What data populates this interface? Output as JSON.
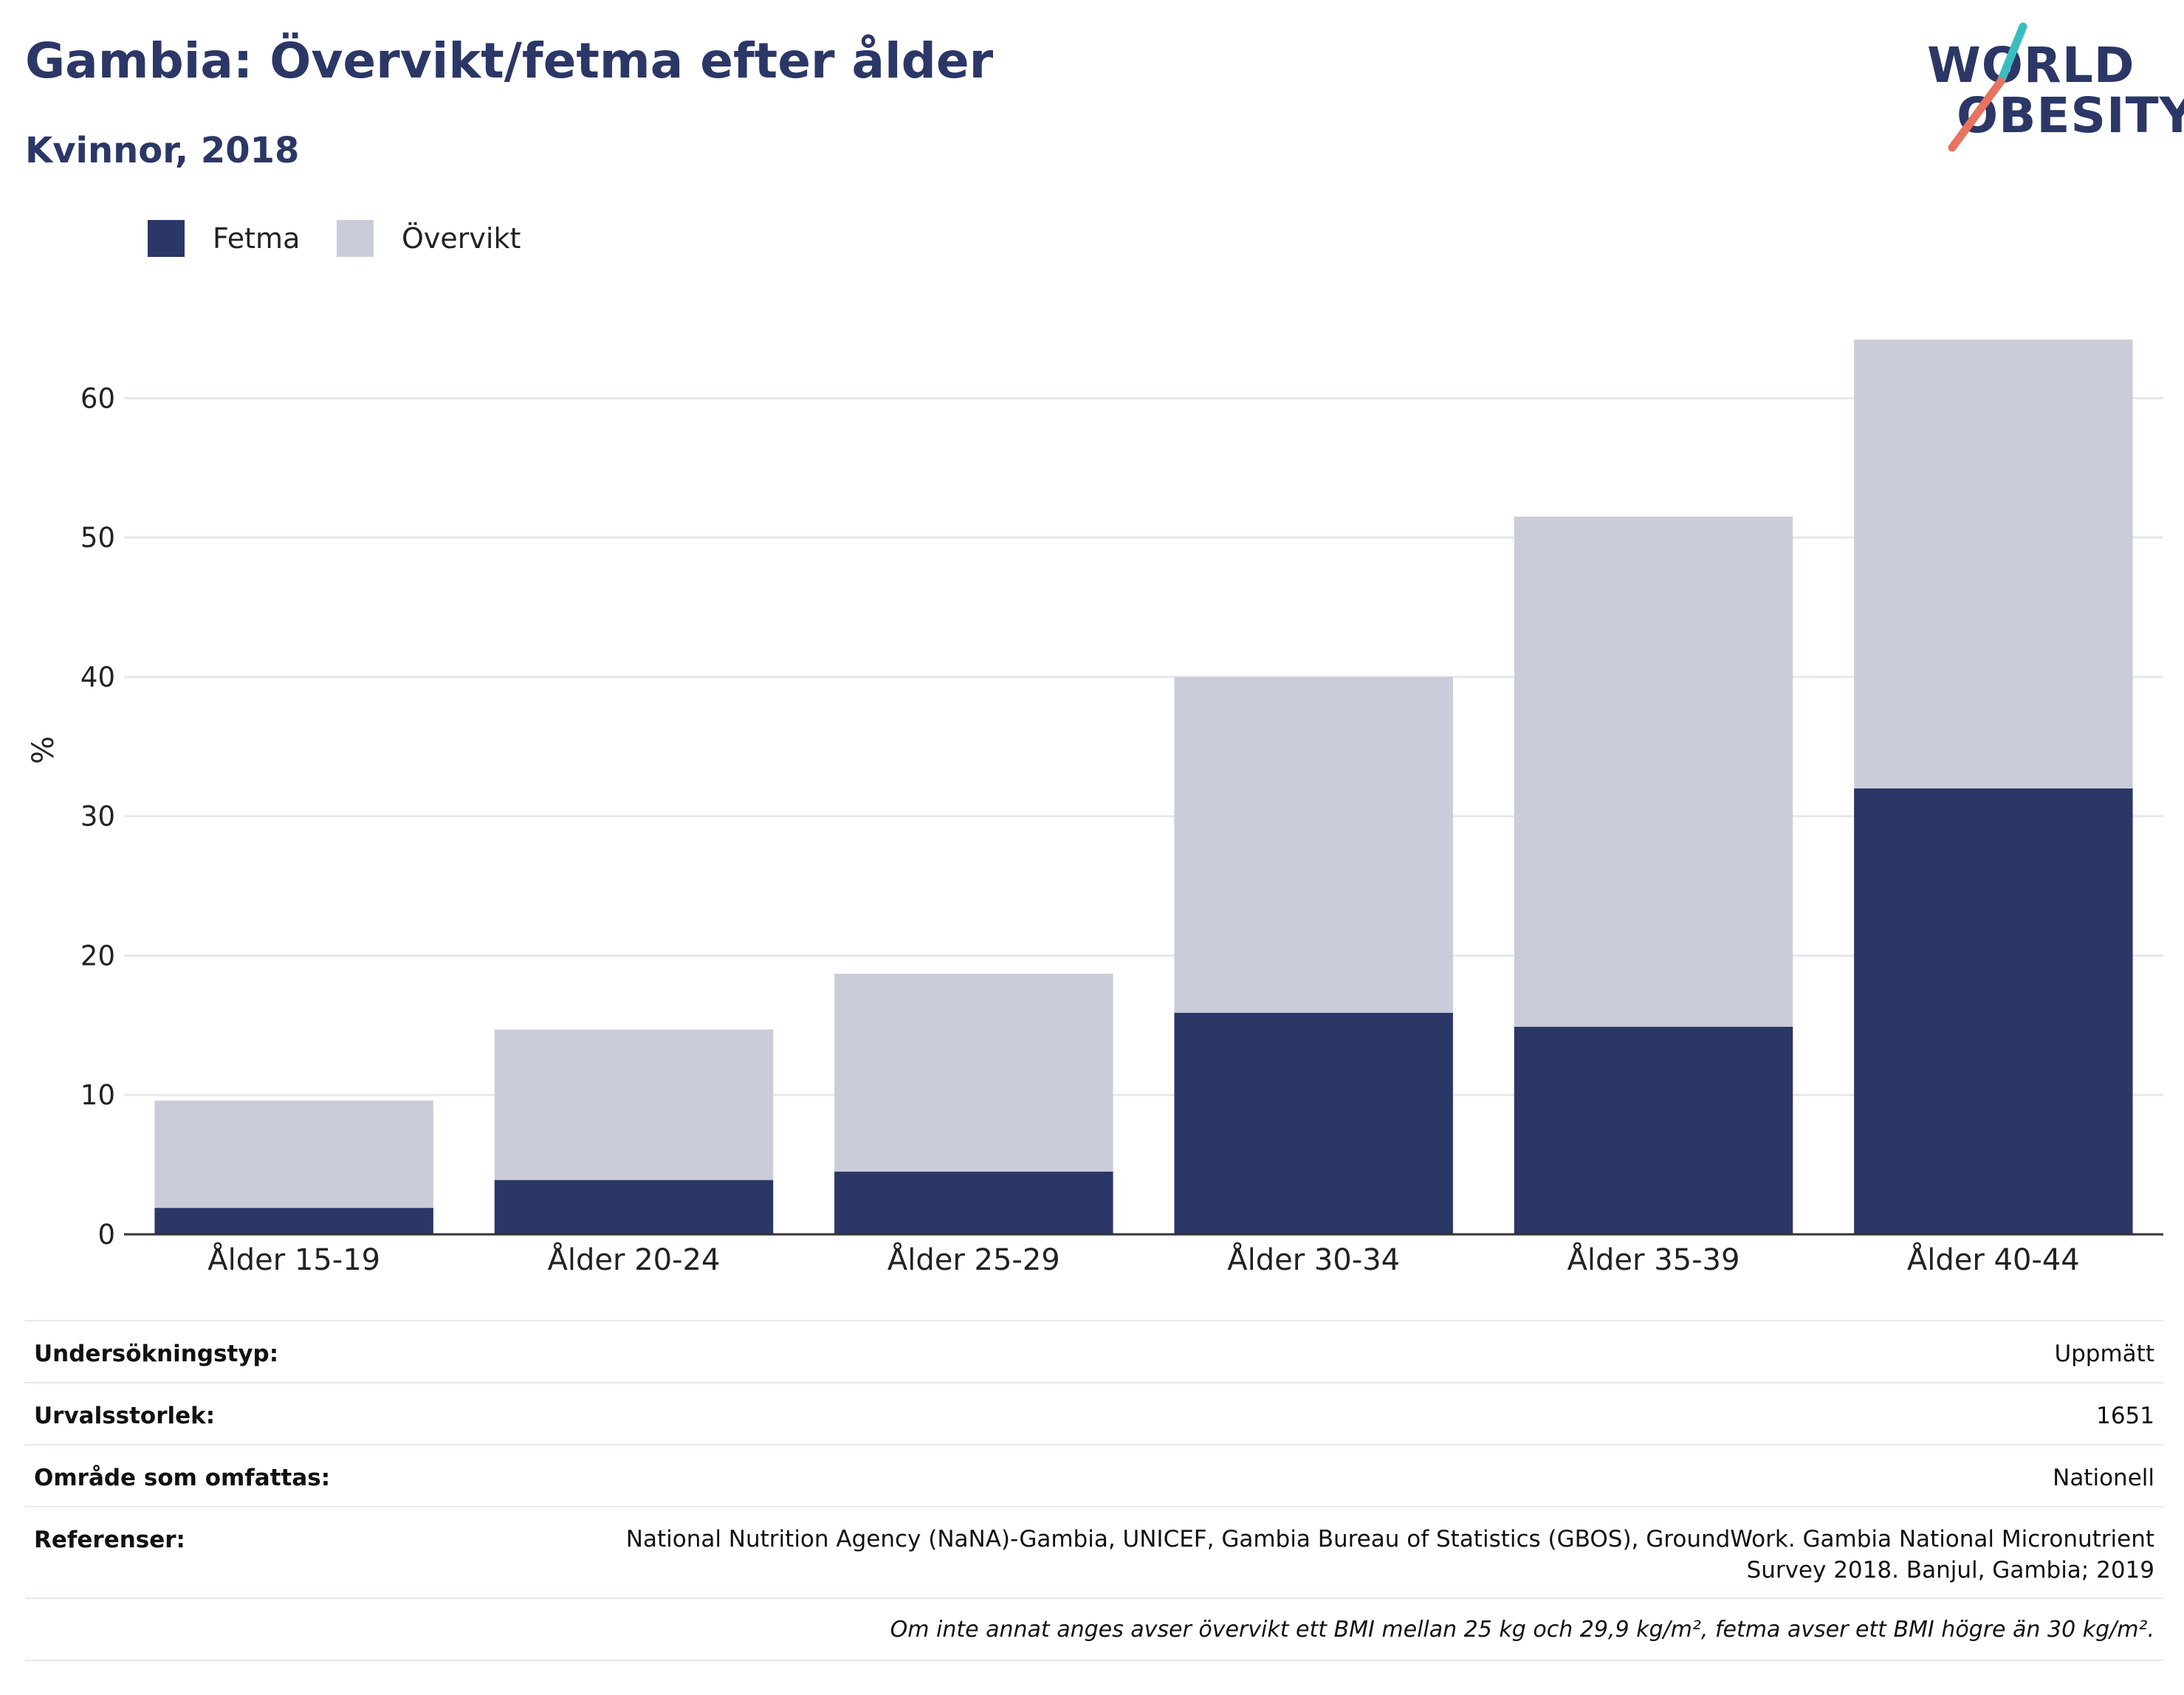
{
  "header": {
    "title": "Gambia: Övervikt/fetma efter ålder",
    "subtitle": "Kvinnor, 2018",
    "logo_line1": "WORLD",
    "logo_line2": "OBESITY"
  },
  "colors": {
    "fetma": "#2b3766",
    "overvikt": "#cacdd9",
    "title": "#2b3766",
    "logo_teal": "#3bbdc0",
    "logo_coral": "#e8735e"
  },
  "legend": [
    {
      "label": "Fetma",
      "color": "#2b3766"
    },
    {
      "label": "Övervikt",
      "color": "#cacdd9"
    }
  ],
  "chart_data": {
    "type": "bar",
    "stacked": true,
    "categories": [
      "Ålder 15-19",
      "Ålder 20-24",
      "Ålder 25-29",
      "Ålder 30-34",
      "Ålder 35-39",
      "Ålder 40-44"
    ],
    "series": [
      {
        "name": "Fetma",
        "values": [
          1.9,
          3.9,
          4.5,
          15.9,
          14.9,
          32.0
        ]
      },
      {
        "name": "Övervikt",
        "values": [
          7.7,
          10.8,
          14.2,
          24.1,
          36.6,
          32.2
        ]
      }
    ],
    "totals": [
      9.6,
      14.7,
      18.7,
      40.0,
      51.5,
      64.2
    ],
    "ylabel": "%",
    "xlabel": "",
    "ylim": [
      0,
      69.5
    ],
    "yticks": [
      0,
      10,
      20,
      30,
      40,
      50,
      60
    ],
    "grid": true,
    "legend_position": "top-left"
  },
  "info": {
    "rows": [
      {
        "key": "Undersökningstyp:",
        "value": "Uppmätt"
      },
      {
        "key": "Urvalsstorlek:",
        "value": "1651"
      },
      {
        "key": "Område som omfattas:",
        "value": "Nationell"
      },
      {
        "key": "Referenser:",
        "value": "National Nutrition Agency (NaNA)-Gambia, UNICEF, Gambia Bureau of Statistics (GBOS), GroundWork. Gambia National Micronutrient Survey 2018. Banjul, Gambia; 2019"
      }
    ],
    "note": "Om inte annat anges avser övervikt ett BMI mellan 25 kg och 29,9 kg/m², fetma avser ett BMI högre än 30 kg/m²."
  }
}
